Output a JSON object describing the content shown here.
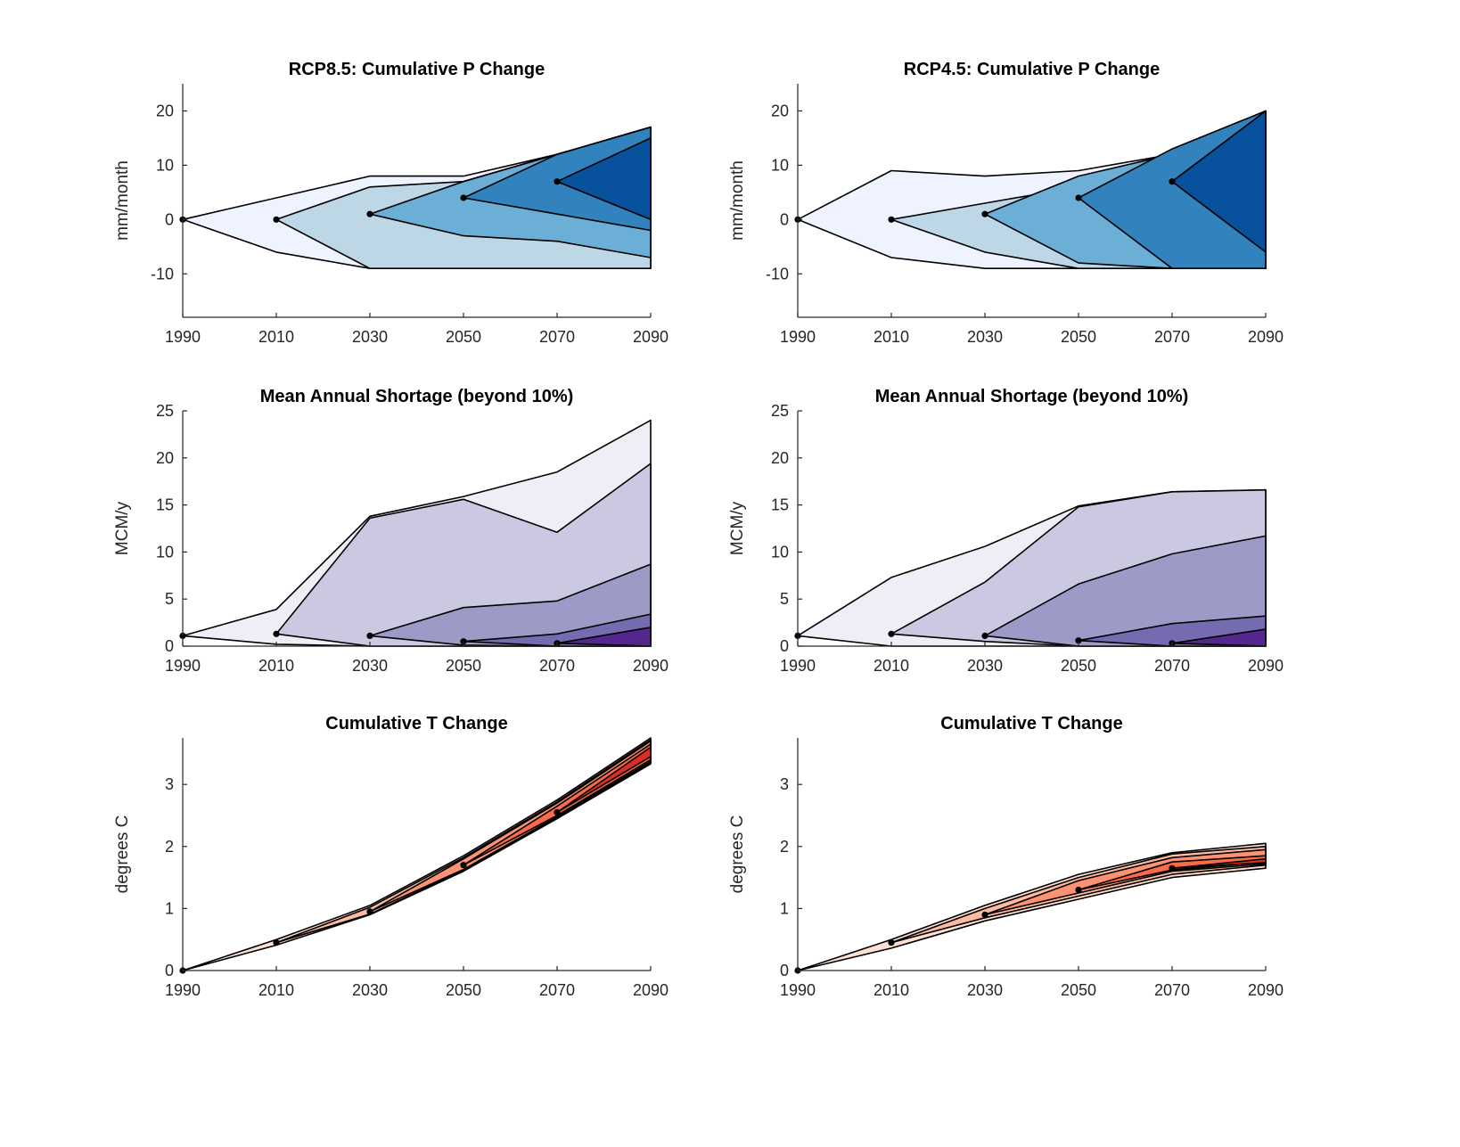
{
  "chart_data": [
    {
      "id": "p85",
      "type": "area",
      "title": "RCP8.5: Cumulative P Change",
      "xlabel": "",
      "ylabel": "mm/month",
      "x_ticks": [
        1990,
        2010,
        2030,
        2050,
        2070,
        2090
      ],
      "y_ticks": [
        -10,
        0,
        10,
        20
      ],
      "xlim": [
        1990,
        2090
      ],
      "ylim": [
        -18,
        25
      ],
      "grid": false,
      "colors": [
        "#eff3ff",
        "#bdd7e7",
        "#6baed6",
        "#3182bd",
        "#08519c"
      ],
      "cones": [
        {
          "x": [
            1990,
            2010,
            2030,
            2050,
            2070,
            2090
          ],
          "upper": [
            0,
            4,
            8,
            8,
            12,
            17
          ],
          "lower": [
            0,
            -6,
            -9,
            -9,
            -9,
            -9
          ]
        },
        {
          "x": [
            2010,
            2030,
            2050,
            2070,
            2090
          ],
          "upper": [
            0,
            6,
            7,
            12,
            17
          ],
          "lower": [
            0,
            -9,
            -9,
            -9,
            -9
          ]
        },
        {
          "x": [
            2030,
            2050,
            2070,
            2090
          ],
          "upper": [
            1,
            7,
            12,
            17
          ],
          "lower": [
            1,
            -3,
            -4,
            -7
          ]
        },
        {
          "x": [
            2050,
            2070,
            2090
          ],
          "upper": [
            4,
            12,
            17
          ],
          "lower": [
            4,
            1,
            -2
          ]
        },
        {
          "x": [
            2070,
            2090
          ],
          "upper": [
            7,
            15
          ],
          "lower": [
            7,
            0
          ]
        }
      ],
      "points": [
        {
          "x": 1990,
          "y": 0
        },
        {
          "x": 2010,
          "y": 0
        },
        {
          "x": 2030,
          "y": 1
        },
        {
          "x": 2050,
          "y": 4
        },
        {
          "x": 2070,
          "y": 7
        }
      ]
    },
    {
      "id": "p45",
      "type": "area",
      "title": "RCP4.5: Cumulative P Change",
      "xlabel": "",
      "ylabel": "mm/month",
      "x_ticks": [
        1990,
        2010,
        2030,
        2050,
        2070,
        2090
      ],
      "y_ticks": [
        -10,
        0,
        10,
        20
      ],
      "xlim": [
        1990,
        2090
      ],
      "ylim": [
        -18,
        25
      ],
      "grid": false,
      "colors": [
        "#eff3ff",
        "#bdd7e7",
        "#6baed6",
        "#3182bd",
        "#08519c"
      ],
      "cones": [
        {
          "x": [
            1990,
            2010,
            2030,
            2050,
            2070,
            2090
          ],
          "upper": [
            0,
            9,
            8,
            9,
            12,
            20
          ],
          "lower": [
            0,
            -7,
            -9,
            -9,
            -9,
            -9
          ]
        },
        {
          "x": [
            2010,
            2030,
            2050,
            2070,
            2090
          ],
          "upper": [
            0,
            3,
            6,
            12,
            20
          ],
          "lower": [
            0,
            -6,
            -9,
            -9,
            -9
          ]
        },
        {
          "x": [
            2030,
            2050,
            2070,
            2090
          ],
          "upper": [
            1,
            8,
            12,
            20
          ],
          "lower": [
            1,
            -8,
            -9,
            -9
          ]
        },
        {
          "x": [
            2050,
            2070,
            2090
          ],
          "upper": [
            4,
            13,
            20
          ],
          "lower": [
            4,
            -9,
            -9
          ]
        },
        {
          "x": [
            2070,
            2090
          ],
          "upper": [
            7,
            20
          ],
          "lower": [
            7,
            -6
          ]
        }
      ],
      "points": [
        {
          "x": 1990,
          "y": 0
        },
        {
          "x": 2010,
          "y": 0
        },
        {
          "x": 2030,
          "y": 1
        },
        {
          "x": 2050,
          "y": 4
        },
        {
          "x": 2070,
          "y": 7
        }
      ]
    },
    {
      "id": "s85",
      "type": "area",
      "title": "Mean Annual Shortage (beyond 10%)",
      "xlabel": "",
      "ylabel": "MCM/y",
      "x_ticks": [
        1990,
        2010,
        2030,
        2050,
        2070,
        2090
      ],
      "y_ticks": [
        0,
        5,
        10,
        15,
        20,
        25
      ],
      "xlim": [
        1990,
        2090
      ],
      "ylim": [
        0,
        25
      ],
      "grid": false,
      "colors": [
        "#efedf5",
        "#cbc9e2",
        "#9e9ac8",
        "#756bb1",
        "#54278f"
      ],
      "cones": [
        {
          "x": [
            1990,
            2010,
            2030,
            2050,
            2070,
            2090
          ],
          "upper": [
            1.1,
            3.9,
            13.8,
            15.9,
            18.5,
            24
          ],
          "lower": [
            1.1,
            0.2,
            0,
            0,
            0,
            0
          ]
        },
        {
          "x": [
            2010,
            2030,
            2050,
            2070,
            2090
          ],
          "upper": [
            1.3,
            13.6,
            15.6,
            12.1,
            19.4
          ],
          "lower": [
            1.3,
            0,
            0,
            0,
            0
          ]
        },
        {
          "x": [
            2030,
            2050,
            2070,
            2090
          ],
          "upper": [
            1.1,
            4.1,
            4.8,
            8.7
          ],
          "lower": [
            1.1,
            0.1,
            0,
            0
          ]
        },
        {
          "x": [
            2050,
            2070,
            2090
          ],
          "upper": [
            0.5,
            1.3,
            3.4
          ],
          "lower": [
            0.5,
            0,
            0
          ]
        },
        {
          "x": [
            2070,
            2090
          ],
          "upper": [
            0.3,
            2.0
          ],
          "lower": [
            0.3,
            0
          ]
        }
      ],
      "points": [
        {
          "x": 1990,
          "y": 1.1
        },
        {
          "x": 2010,
          "y": 1.3
        },
        {
          "x": 2030,
          "y": 1.1
        },
        {
          "x": 2050,
          "y": 0.5
        },
        {
          "x": 2070,
          "y": 0.3
        }
      ]
    },
    {
      "id": "s45",
      "type": "area",
      "title": "Mean Annual Shortage (beyond 10%)",
      "xlabel": "",
      "ylabel": "MCM/y",
      "x_ticks": [
        1990,
        2010,
        2030,
        2050,
        2070,
        2090
      ],
      "y_ticks": [
        0,
        5,
        10,
        15,
        20,
        25
      ],
      "xlim": [
        1990,
        2090
      ],
      "ylim": [
        0,
        25
      ],
      "grid": false,
      "colors": [
        "#efedf5",
        "#cbc9e2",
        "#9e9ac8",
        "#756bb1",
        "#54278f"
      ],
      "cones": [
        {
          "x": [
            1990,
            2010,
            2030,
            2050,
            2070,
            2090
          ],
          "upper": [
            1.1,
            7.3,
            10.6,
            14.9,
            16.4,
            16.6
          ],
          "lower": [
            1.1,
            0,
            0,
            0,
            0,
            0
          ]
        },
        {
          "x": [
            2010,
            2030,
            2050,
            2070,
            2090
          ],
          "upper": [
            1.3,
            6.8,
            14.8,
            16.4,
            16.6
          ],
          "lower": [
            1.3,
            0.5,
            0,
            0,
            0
          ]
        },
        {
          "x": [
            2030,
            2050,
            2070,
            2090
          ],
          "upper": [
            1.1,
            6.6,
            9.8,
            11.7
          ],
          "lower": [
            1.1,
            0,
            0,
            0
          ]
        },
        {
          "x": [
            2050,
            2070,
            2090
          ],
          "upper": [
            0.6,
            2.4,
            3.2
          ],
          "lower": [
            0.6,
            0,
            0
          ]
        },
        {
          "x": [
            2070,
            2090
          ],
          "upper": [
            0.3,
            1.8
          ],
          "lower": [
            0.3,
            0
          ]
        }
      ],
      "points": [
        {
          "x": 1990,
          "y": 1.1
        },
        {
          "x": 2010,
          "y": 1.3
        },
        {
          "x": 2030,
          "y": 1.1
        },
        {
          "x": 2050,
          "y": 0.6
        },
        {
          "x": 2070,
          "y": 0.3
        }
      ]
    },
    {
      "id": "t85",
      "type": "area",
      "title": "Cumulative T Change",
      "xlabel": "",
      "ylabel": "degrees C",
      "x_ticks": [
        1990,
        2010,
        2030,
        2050,
        2070,
        2090
      ],
      "y_ticks": [
        0,
        1,
        2,
        3
      ],
      "xlim": [
        1990,
        2090
      ],
      "ylim": [
        0,
        3.75
      ],
      "grid": false,
      "colors": [
        "#fee0d2",
        "#fcbba1",
        "#fc9272",
        "#fb6a4a",
        "#de2d26",
        "#a50f15"
      ],
      "cones": [
        {
          "x": [
            1990,
            2010,
            2030,
            2050,
            2070,
            2090
          ],
          "upper": [
            0,
            0.5,
            1.05,
            1.85,
            2.75,
            3.75
          ],
          "lower": [
            0,
            0.41,
            0.9,
            1.6,
            2.45,
            3.33
          ]
        },
        {
          "x": [
            2010,
            2030,
            2050,
            2070,
            2090
          ],
          "upper": [
            0.45,
            1.02,
            1.82,
            2.72,
            3.72
          ],
          "lower": [
            0.45,
            0.91,
            1.62,
            2.47,
            3.35
          ]
        },
        {
          "x": [
            2030,
            2050,
            2070,
            2090
          ],
          "upper": [
            0.95,
            1.8,
            2.7,
            3.7
          ],
          "lower": [
            0.95,
            1.63,
            2.48,
            3.37
          ]
        },
        {
          "x": [
            2050,
            2070,
            2090
          ],
          "upper": [
            1.7,
            2.65,
            3.65
          ],
          "lower": [
            1.7,
            2.5,
            3.4
          ]
        },
        {
          "x": [
            2070,
            2090
          ],
          "upper": [
            2.55,
            3.6
          ],
          "lower": [
            2.55,
            3.45
          ]
        }
      ],
      "points": [
        {
          "x": 1990,
          "y": 0
        },
        {
          "x": 2010,
          "y": 0.45
        },
        {
          "x": 2030,
          "y": 0.95
        },
        {
          "x": 2050,
          "y": 1.7
        },
        {
          "x": 2070,
          "y": 2.55
        }
      ]
    },
    {
      "id": "t45",
      "type": "area",
      "title": "Cumulative T Change",
      "xlabel": "",
      "ylabel": "degrees C",
      "x_ticks": [
        1990,
        2010,
        2030,
        2050,
        2070,
        2090
      ],
      "y_ticks": [
        0,
        1,
        2,
        3
      ],
      "xlim": [
        1990,
        2090
      ],
      "ylim": [
        0,
        3.75
      ],
      "grid": false,
      "colors": [
        "#fee0d2",
        "#fcbba1",
        "#fc9272",
        "#fb6a4a",
        "#de2d26",
        "#a50f15"
      ],
      "cones": [
        {
          "x": [
            1990,
            2010,
            2030,
            2050,
            2070,
            2090
          ],
          "upper": [
            0,
            0.5,
            1.05,
            1.55,
            1.9,
            2.05
          ],
          "lower": [
            0,
            0.36,
            0.8,
            1.15,
            1.5,
            1.65
          ]
        },
        {
          "x": [
            2010,
            2030,
            2050,
            2070,
            2090
          ],
          "upper": [
            0.45,
            1.0,
            1.5,
            1.88,
            2.0
          ],
          "lower": [
            0.45,
            0.85,
            1.2,
            1.55,
            1.7
          ]
        },
        {
          "x": [
            2030,
            2050,
            2070,
            2090
          ],
          "upper": [
            0.9,
            1.45,
            1.82,
            1.95
          ],
          "lower": [
            0.9,
            1.25,
            1.6,
            1.72
          ]
        },
        {
          "x": [
            2050,
            2070,
            2090
          ],
          "upper": [
            1.3,
            1.75,
            1.85
          ],
          "lower": [
            1.3,
            1.62,
            1.75
          ]
        },
        {
          "x": [
            2070,
            2090
          ],
          "upper": [
            1.65,
            1.8
          ],
          "lower": [
            1.65,
            1.74
          ]
        }
      ],
      "points": [
        {
          "x": 1990,
          "y": 0
        },
        {
          "x": 2010,
          "y": 0.45
        },
        {
          "x": 2030,
          "y": 0.9
        },
        {
          "x": 2050,
          "y": 1.3
        },
        {
          "x": 2070,
          "y": 1.65
        }
      ]
    }
  ]
}
